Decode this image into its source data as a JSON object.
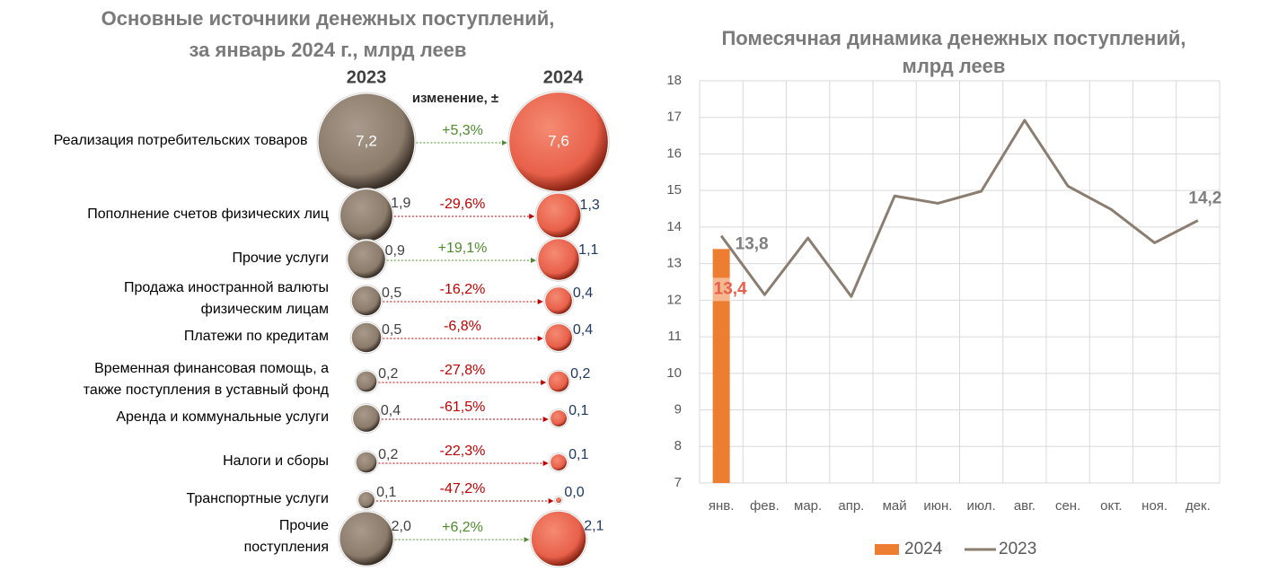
{
  "chart_data": [
    {
      "type": "bubble",
      "title": [
        "Основные источники денежных поступлений,",
        "за январь 2024 г., млрд  леев"
      ],
      "change_label": "изменение, ±",
      "categories": [
        [
          "Реализация потребительских товаров"
        ],
        [
          "Пополнение счетов физических лиц"
        ],
        [
          "Прочие услуги"
        ],
        [
          "Продажа иностранной валюты",
          "физическим лицам"
        ],
        [
          "Платежи по кредитам"
        ],
        [
          "Временная финансовая помощь, а",
          "также поступления в уставный фонд"
        ],
        [
          "Аренда и коммунальные услуги"
        ],
        [
          "Налоги и сборы"
        ],
        [
          "Транспортные услуги"
        ],
        [
          "Прочие",
          "поступления"
        ]
      ],
      "series": [
        {
          "name": "2023",
          "color": "#8b7b6b",
          "values": [
            7.2,
            1.9,
            0.9,
            0.5,
            0.5,
            0.2,
            0.4,
            0.2,
            0.1,
            2.0
          ],
          "value_labels": [
            "7,2",
            "1,9",
            "0,9",
            "0,5",
            "0,5",
            "0,2",
            "0,4",
            "0,2",
            "0,1",
            "2,0"
          ]
        },
        {
          "name": "2024",
          "color": "#e8604a",
          "values": [
            7.6,
            1.3,
            1.1,
            0.4,
            0.4,
            0.2,
            0.1,
            0.1,
            0.0,
            2.1
          ],
          "value_labels": [
            "7,6",
            "1,3",
            "1,1",
            "0,4",
            "0,4",
            "0,2",
            "0,1",
            "0,1",
            "0,0",
            "2,1"
          ]
        }
      ],
      "change": {
        "values": [
          5.3,
          -29.6,
          19.1,
          -16.2,
          -6.8,
          -27.8,
          -61.5,
          -22.3,
          -47.2,
          6.2
        ],
        "value_labels": [
          "+5,3%",
          "-29,6%",
          "+19,1%",
          "-16,2%",
          "-6,8%",
          "-27,8%",
          "-61,5%",
          "-22,3%",
          "-47,2%",
          "+6,2%"
        ],
        "positive_color": "#4e8a2e",
        "negative_color": "#c00000"
      }
    },
    {
      "type": "line",
      "title": [
        "Помесячная динамика денежных поступлений,",
        "млрд леев"
      ],
      "categories": [
        "янв.",
        "фев.",
        "мар.",
        "апр.",
        "май",
        "июн.",
        "июл.",
        "авг.",
        "сен.",
        "окт.",
        "ноя.",
        "дек."
      ],
      "series": [
        {
          "name": "2024",
          "type": "bar",
          "color": "#ed7d31",
          "values": [
            13.4,
            null,
            null,
            null,
            null,
            null,
            null,
            null,
            null,
            null,
            null,
            null
          ],
          "value_labels": [
            "13,4",
            null,
            null,
            null,
            null,
            null,
            null,
            null,
            null,
            null,
            null,
            null
          ]
        },
        {
          "name": "2023",
          "type": "line",
          "color": "#8b7d70",
          "values": [
            13.76,
            12.15,
            13.7,
            12.1,
            14.85,
            14.65,
            14.98,
            16.92,
            15.12,
            14.48,
            13.57,
            14.18
          ],
          "value_labels": [
            "13,8",
            null,
            null,
            null,
            null,
            null,
            null,
            null,
            null,
            null,
            null,
            "14,2"
          ]
        }
      ],
      "ylim": [
        7,
        18
      ],
      "yticks": [
        7,
        8,
        9,
        10,
        11,
        12,
        13,
        14,
        15,
        16,
        17,
        18
      ],
      "grid": true,
      "legend": "bottom"
    }
  ]
}
